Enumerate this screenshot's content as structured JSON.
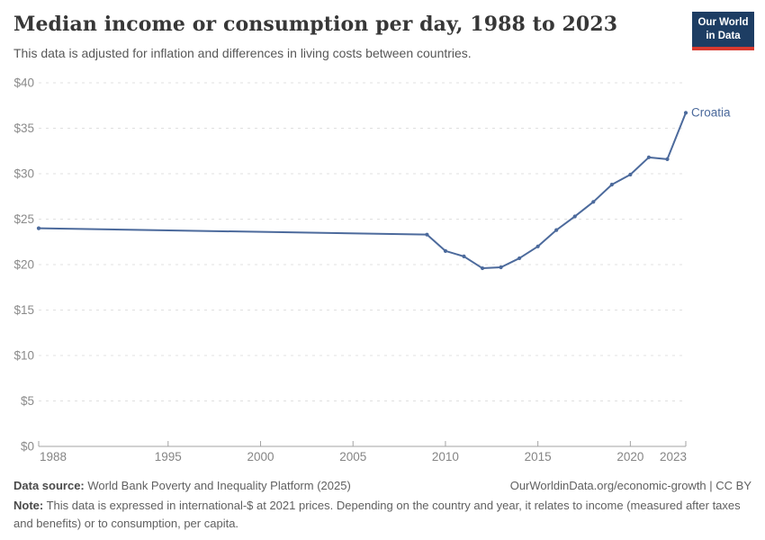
{
  "header": {
    "title": "Median income or consumption per day, 1988 to 2023",
    "subtitle": "This data is adjusted for inflation and differences in living costs between countries.",
    "logo": {
      "line1": "Our World",
      "line2": "in Data",
      "bg_color": "#1d3d63",
      "bar_color": "#d8392f"
    }
  },
  "chart_data": {
    "type": "line",
    "title": "Median income or consumption per day, 1988 to 2023",
    "entity_label": "Croatia",
    "series": [
      {
        "name": "Croatia",
        "color": "#4c6a9c",
        "x": [
          1988,
          2009,
          2010,
          2011,
          2012,
          2013,
          2014,
          2015,
          2016,
          2017,
          2018,
          2019,
          2020,
          2021,
          2022,
          2023
        ],
        "values": [
          24.0,
          23.3,
          21.5,
          20.9,
          19.6,
          19.7,
          20.7,
          22.0,
          23.8,
          25.3,
          26.9,
          28.8,
          29.9,
          31.8,
          31.6,
          36.7
        ]
      }
    ],
    "xlim": [
      1988,
      2023
    ],
    "ylim": [
      0,
      40
    ],
    "x_ticks": [
      1988,
      1995,
      2000,
      2005,
      2010,
      2015,
      2020,
      2023
    ],
    "y_ticks": [
      0,
      5,
      10,
      15,
      20,
      25,
      30,
      35,
      40
    ],
    "y_tick_prefix": "$",
    "xlabel": "",
    "ylabel": "",
    "grid": "horizontal-dashed",
    "legend_position": "end-of-line-label",
    "grid_color": "#e0e0e0",
    "axis_color": "#a3a3a3",
    "tick_label_color": "#8a8a8a"
  },
  "footer": {
    "datasource_label": "Data source:",
    "datasource_text": " World Bank Poverty and Inequality Platform (2025)",
    "credit": "OurWorldinData.org/economic-growth | CC BY",
    "note_label": "Note:",
    "note_text": " This data is expressed in international-$ at 2021 prices. Depending on the country and year, it relates to income (measured after taxes and benefits) or to consumption, per capita."
  }
}
